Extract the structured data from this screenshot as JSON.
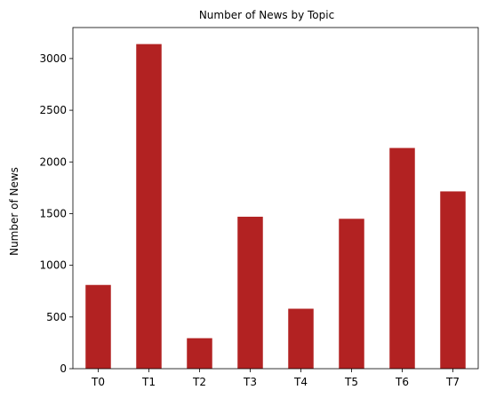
{
  "chart_data": {
    "type": "bar",
    "title": "Number of News by  Topic",
    "xlabel": "",
    "ylabel": "Number of News",
    "categories": [
      "T0",
      "T1",
      "T2",
      "T3",
      "T4",
      "T5",
      "T6",
      "T7"
    ],
    "values": [
      810,
      3140,
      295,
      1470,
      580,
      1450,
      2135,
      1715
    ],
    "ylim": [
      0,
      3300
    ],
    "yticks": [
      0,
      500,
      1000,
      1500,
      2000,
      2500,
      3000
    ],
    "grid": false,
    "bar_color": "#b22222"
  }
}
